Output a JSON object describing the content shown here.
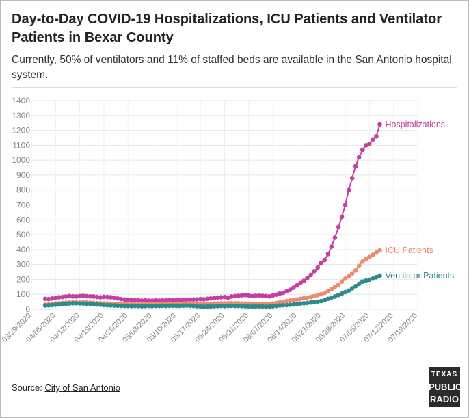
{
  "chart_data": {
    "type": "line",
    "title": "Day-to-Day COVID-19 Hospitalizations, ICU Patients and Ventilator Patients in Bexar County",
    "subtitle": "Currently, 50% of ventilators and 11% of staffed beds are available in the San Antonio hospital system.",
    "x": [
      "04/02/2020",
      "04/03/2020",
      "04/04/2020",
      "04/05/2020",
      "04/06/2020",
      "04/07/2020",
      "04/08/2020",
      "04/09/2020",
      "04/10/2020",
      "04/11/2020",
      "04/12/2020",
      "04/13/2020",
      "04/14/2020",
      "04/15/2020",
      "04/16/2020",
      "04/17/2020",
      "04/18/2020",
      "04/19/2020",
      "04/20/2020",
      "04/21/2020",
      "04/22/2020",
      "04/23/2020",
      "04/24/2020",
      "04/25/2020",
      "04/26/2020",
      "04/27/2020",
      "04/28/2020",
      "04/29/2020",
      "04/30/2020",
      "05/01/2020",
      "05/02/2020",
      "05/03/2020",
      "05/04/2020",
      "05/05/2020",
      "05/06/2020",
      "05/07/2020",
      "05/08/2020",
      "05/09/2020",
      "05/10/2020",
      "05/11/2020",
      "05/12/2020",
      "05/13/2020",
      "05/14/2020",
      "05/15/2020",
      "05/16/2020",
      "05/17/2020",
      "05/18/2020",
      "05/19/2020",
      "05/20/2020",
      "05/21/2020",
      "05/22/2020",
      "05/23/2020",
      "05/24/2020",
      "05/25/2020",
      "05/26/2020",
      "05/27/2020",
      "05/28/2020",
      "05/29/2020",
      "05/30/2020",
      "05/31/2020",
      "06/01/2020",
      "06/02/2020",
      "06/03/2020",
      "06/04/2020",
      "06/05/2020",
      "06/06/2020",
      "06/07/2020",
      "06/08/2020",
      "06/09/2020",
      "06/10/2020",
      "06/11/2020",
      "06/12/2020",
      "06/13/2020",
      "06/14/2020",
      "06/15/2020",
      "06/16/2020",
      "06/17/2020",
      "06/18/2020",
      "06/19/2020",
      "06/20/2020",
      "06/21/2020",
      "06/22/2020",
      "06/23/2020",
      "06/24/2020",
      "06/25/2020",
      "06/26/2020",
      "06/27/2020",
      "06/28/2020",
      "06/29/2020",
      "06/30/2020",
      "07/01/2020",
      "07/02/2020",
      "07/03/2020",
      "07/04/2020",
      "07/05/2020",
      "07/06/2020",
      "07/07/2020",
      "07/08/2020"
    ],
    "series": [
      {
        "name": "Hospitalizations",
        "color": "#c2409f",
        "values": [
          70,
          68,
          72,
          75,
          80,
          82,
          85,
          88,
          86,
          85,
          88,
          90,
          87,
          86,
          85,
          82,
          80,
          83,
          82,
          80,
          78,
          72,
          68,
          65,
          63,
          62,
          60,
          60,
          58,
          60,
          58,
          57,
          60,
          58,
          59,
          60,
          62,
          60,
          61,
          60,
          62,
          64,
          63,
          65,
          66,
          68,
          67,
          70,
          72,
          75,
          78,
          80,
          82,
          78,
          85,
          88,
          90,
          92,
          95,
          93,
          88,
          90,
          92,
          90,
          88,
          86,
          92,
          98,
          105,
          110,
          120,
          130,
          145,
          160,
          175,
          190,
          210,
          230,
          255,
          280,
          310,
          330,
          370,
          420,
          480,
          550,
          620,
          700,
          800,
          880,
          960,
          1020,
          1070,
          1100,
          1110,
          1140,
          1160,
          1240
        ]
      },
      {
        "name": "ICU Patients",
        "color": "#ee8a70",
        "values": [
          30,
          32,
          35,
          38,
          40,
          42,
          44,
          45,
          46,
          45,
          44,
          46,
          45,
          44,
          42,
          40,
          40,
          38,
          38,
          37,
          36,
          35,
          34,
          34,
          33,
          33,
          32,
          33,
          33,
          34,
          35,
          34,
          35,
          36,
          35,
          36,
          37,
          36,
          38,
          37,
          38,
          39,
          38,
          37,
          38,
          36,
          35,
          36,
          37,
          38,
          39,
          40,
          39,
          40,
          41,
          40,
          40,
          39,
          38,
          37,
          36,
          36,
          35,
          35,
          34,
          36,
          38,
          42,
          46,
          50,
          55,
          58,
          62,
          66,
          70,
          74,
          78,
          82,
          88,
          95,
          100,
          110,
          120,
          135,
          150,
          165,
          185,
          205,
          220,
          240,
          260,
          290,
          320,
          335,
          350,
          365,
          380,
          395
        ]
      },
      {
        "name": "Ventilator Patients",
        "color": "#2d8a8c",
        "values": [
          25,
          26,
          28,
          30,
          32,
          34,
          36,
          38,
          40,
          40,
          39,
          38,
          37,
          36,
          34,
          32,
          30,
          28,
          27,
          26,
          25,
          24,
          23,
          22,
          22,
          21,
          22,
          21,
          20,
          21,
          22,
          21,
          22,
          22,
          23,
          22,
          23,
          24,
          23,
          22,
          24,
          25,
          24,
          22,
          20,
          18,
          17,
          18,
          19,
          20,
          21,
          22,
          21,
          22,
          23,
          22,
          22,
          21,
          20,
          19,
          18,
          18,
          19,
          18,
          17,
          18,
          20,
          22,
          25,
          27,
          28,
          30,
          32,
          35,
          38,
          40,
          42,
          45,
          48,
          50,
          55,
          62,
          70,
          78,
          85,
          95,
          105,
          115,
          125,
          140,
          155,
          170,
          185,
          192,
          198,
          205,
          215,
          225
        ]
      }
    ],
    "xlim": [
      "03/29/2020",
      "07/19/2020"
    ],
    "xticks": [
      "03/29/2020",
      "04/05/2020",
      "04/12/2020",
      "04/19/2020",
      "04/26/2020",
      "05/03/2020",
      "05/10/2020",
      "05/17/2020",
      "05/24/2020",
      "05/31/2020",
      "06/07/2020",
      "06/14/2020",
      "06/21/2020",
      "06/28/2020",
      "07/05/2020",
      "07/12/2020",
      "07/19/2020"
    ],
    "ylim": [
      0,
      1400
    ],
    "yticks": [
      0,
      100,
      200,
      300,
      400,
      500,
      600,
      700,
      800,
      900,
      1000,
      1100,
      1200,
      1300,
      1400
    ],
    "grid": true,
    "source": {
      "label": "Source:",
      "link": "City of San Antonio"
    },
    "logo": [
      "TEXAS",
      "PUBLIC",
      "RADIO"
    ]
  }
}
